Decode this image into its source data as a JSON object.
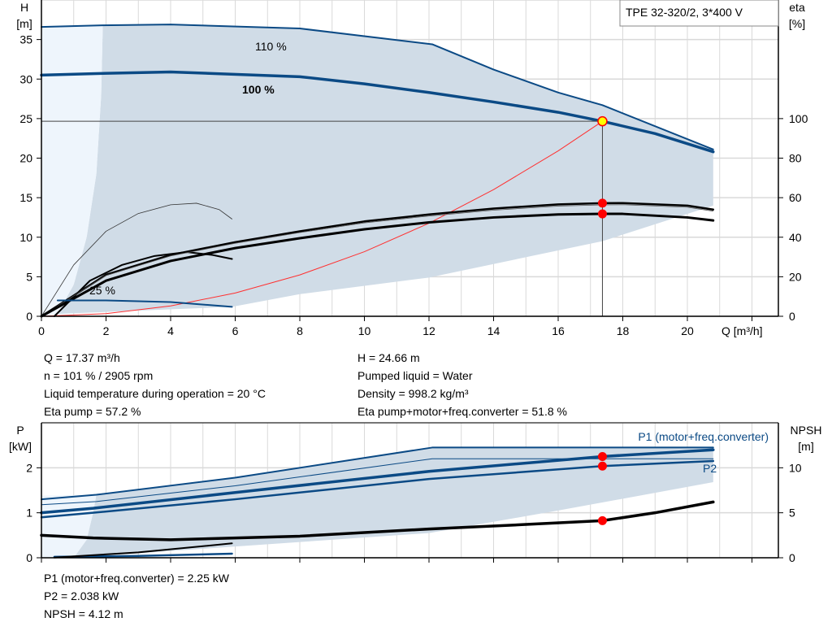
{
  "colors": {
    "curve": "#0b4a85",
    "shade": "#d0dce7",
    "shade_light": "#eef5fc",
    "grid": "#d9d9d9",
    "system": "#ff3030",
    "marker": "#ff0000",
    "duty_marker": "#ffff00"
  },
  "chart_data": [
    {
      "type": "line",
      "title": "TPE 32-320/2, 3*400 V",
      "xlabel": "Q [m³/h]",
      "ylabel": "H\n[m]",
      "ylabel_h": "H",
      "ylabel_h_unit": "[m]",
      "y2label": "eta",
      "y2label_unit": "[%]",
      "xlim": [
        0,
        22
      ],
      "ylim": [
        0,
        40
      ],
      "y2lim": [
        0,
        160
      ],
      "xticks": [
        "0",
        "2",
        "4",
        "6",
        "8",
        "10",
        "12",
        "14",
        "16",
        "18",
        "20"
      ],
      "yticks": [
        "0",
        "5",
        "10",
        "15",
        "20",
        "25",
        "30",
        "35"
      ],
      "y2ticks": [
        "0",
        "20",
        "40",
        "60",
        "80",
        "100"
      ],
      "grid": true,
      "annotations": [
        "110 %",
        "100 %",
        "25 %"
      ],
      "series": [
        {
          "name": "110 %",
          "axis": "H",
          "x": [
            0,
            1.9,
            4,
            8,
            12.1,
            14,
            16,
            17.37,
            20.8
          ],
          "y": [
            36.6,
            36.8,
            36.9,
            36.4,
            34.4,
            31.2,
            28.3,
            26.7,
            21.1
          ]
        },
        {
          "name": "100 %",
          "axis": "H",
          "x": [
            0,
            1.7,
            4,
            8,
            10,
            12,
            14,
            16,
            17.37,
            19,
            20.8
          ],
          "y": [
            30.5,
            30.7,
            30.9,
            30.3,
            29.4,
            28.3,
            27.1,
            25.8,
            24.66,
            23.1,
            20.8
          ]
        },
        {
          "name": "25 %",
          "axis": "H",
          "x": [
            0.5,
            2,
            4,
            5.9
          ],
          "y": [
            2.0,
            2.0,
            1.8,
            1.2
          ]
        },
        {
          "axis": "H",
          "style": "system",
          "x": [
            0,
            2,
            4,
            6,
            8,
            10,
            12,
            14,
            16,
            17.37
          ],
          "y": [
            0,
            0.33,
            1.31,
            2.94,
            5.23,
            8.17,
            11.77,
            16.02,
            20.92,
            24.66
          ]
        },
        {
          "axis": "eta",
          "style": "eta-pump",
          "x": [
            0,
            2,
            4,
            6,
            8,
            10,
            12,
            14,
            16,
            17.37,
            18,
            20,
            20.8
          ],
          "y": [
            0,
            21,
            31,
            37.5,
            43,
            48,
            51.5,
            54.5,
            56.6,
            57.2,
            57.3,
            56,
            54
          ]
        },
        {
          "axis": "eta",
          "style": "eta-total",
          "x": [
            0,
            2,
            4,
            6,
            8,
            10,
            12,
            14,
            16,
            17.37,
            18,
            20,
            20.8
          ],
          "y": [
            0,
            18,
            28,
            34.5,
            39.5,
            44,
            47.5,
            50,
            51.5,
            51.8,
            51.8,
            50,
            48.5
          ]
        },
        {
          "axis": "eta",
          "style": "eta-thin",
          "x": [
            0,
            1,
            2,
            3,
            4,
            4.8,
            5.5,
            5.9
          ],
          "y": [
            0,
            26,
            43,
            52,
            56.4,
            57.2,
            54,
            49.2
          ]
        },
        {
          "axis": "eta",
          "style": "eta-low",
          "x": [
            0.4,
            1.5,
            2.5,
            3.5,
            4.5,
            5.3,
            5.9
          ],
          "y": [
            0,
            18,
            26,
            30.5,
            32.5,
            31,
            29
          ]
        }
      ],
      "operating_point": {
        "Q": 17.37,
        "H": 24.66,
        "eta_pump": 57.2,
        "eta_total": 51.8
      },
      "region": {
        "upper": {
          "x": [
            1.9,
            4,
            8,
            12.1,
            14,
            16,
            17.37,
            20.8
          ],
          "y": [
            36.8,
            36.9,
            36.4,
            34.4,
            31.2,
            28.3,
            26.7,
            21.1
          ]
        },
        "right_bottom": {
          "x": [
            20.8,
            17.37,
            12,
            8,
            5.9
          ],
          "y": [
            14.0,
            9.5,
            4.9,
            2.8,
            1.2
          ]
        },
        "left": {
          "x": [
            0.5,
            1.0,
            1.4,
            1.7,
            1.85,
            1.9
          ],
          "y": [
            0.3,
            4,
            10,
            18,
            28,
            36.8
          ]
        }
      }
    },
    {
      "type": "line",
      "ylabel_p": "P",
      "ylabel_p_unit": "[kW]",
      "y2label": "NPSH",
      "y2label_unit": "[m]",
      "xlim": [
        0,
        22
      ],
      "ylim": [
        0,
        3
      ],
      "y2lim": [
        0,
        15
      ],
      "yticks": [
        "0",
        "1",
        "2"
      ],
      "y2ticks": [
        "0",
        "5",
        "10"
      ],
      "grid": true,
      "legend": [
        "P1 (motor+freq.converter)",
        "P2"
      ],
      "series": [
        {
          "name": "P1 (motor+freq.converter)",
          "axis": "P",
          "x": [
            0,
            1.6,
            6,
            12,
            17.37,
            20.8
          ],
          "y": [
            1.0,
            1.1,
            1.45,
            1.92,
            2.25,
            2.4
          ]
        },
        {
          "name": "P2",
          "axis": "P",
          "x": [
            0,
            1.6,
            6,
            12,
            17.37,
            20.8
          ],
          "y": [
            0.9,
            1.0,
            1.3,
            1.75,
            2.038,
            2.15
          ]
        },
        {
          "axis": "P",
          "style": "p1-110",
          "x": [
            0,
            1.7,
            6,
            12.1,
            20.8
          ],
          "y": [
            1.3,
            1.4,
            1.78,
            2.45,
            2.45
          ]
        },
        {
          "axis": "P",
          "style": "p2-110",
          "x": [
            0,
            1.7,
            6,
            12.1,
            20.8
          ],
          "y": [
            1.18,
            1.25,
            1.6,
            2.2,
            2.2
          ]
        },
        {
          "axis": "P",
          "style": "p-25",
          "x": [
            0.4,
            3,
            5.9
          ],
          "y": [
            0.02,
            0.04,
            0.09
          ]
        },
        {
          "axis": "NPSH",
          "style": "npsh",
          "x": [
            0,
            1.6,
            4,
            8,
            12,
            15,
            17.37,
            19,
            20.8
          ],
          "y": [
            2.5,
            2.2,
            2.0,
            2.4,
            3.2,
            3.7,
            4.12,
            5.0,
            6.2
          ]
        }
      ],
      "operating_point": {
        "Q": 17.37,
        "P1": 2.25,
        "P2": 2.038,
        "NPSH": 4.12
      },
      "region": {
        "upper": {
          "x": [
            1.7,
            6,
            12.1,
            20.8
          ],
          "y": [
            1.4,
            1.78,
            2.45,
            2.45
          ]
        },
        "right_bottom": {
          "x": [
            20.8,
            16,
            12,
            5,
            1
          ],
          "y": [
            1.68,
            1.05,
            0.55,
            0.2,
            0.0
          ]
        },
        "left": {
          "x": [
            1,
            1.4,
            1.6,
            1.7
          ],
          "y": [
            0.0,
            0.4,
            1.0,
            1.4
          ]
        }
      }
    }
  ],
  "info_top": {
    "left": [
      "Q = 17.37 m³/h",
      "n = 101 % / 2905 rpm",
      "Liquid temperature during operation = 20 °C",
      "Eta pump = 57.2 %"
    ],
    "right": [
      "H = 24.66 m",
      "Pumped liquid = Water",
      "Density = 998.2 kg/m³",
      "Eta pump+motor+freq.converter = 51.8 %"
    ]
  },
  "info_bottom": [
    "P1 (motor+freq.converter) = 2.25 kW",
    "P2 = 2.038 kW",
    "NPSH = 4.12 m"
  ]
}
